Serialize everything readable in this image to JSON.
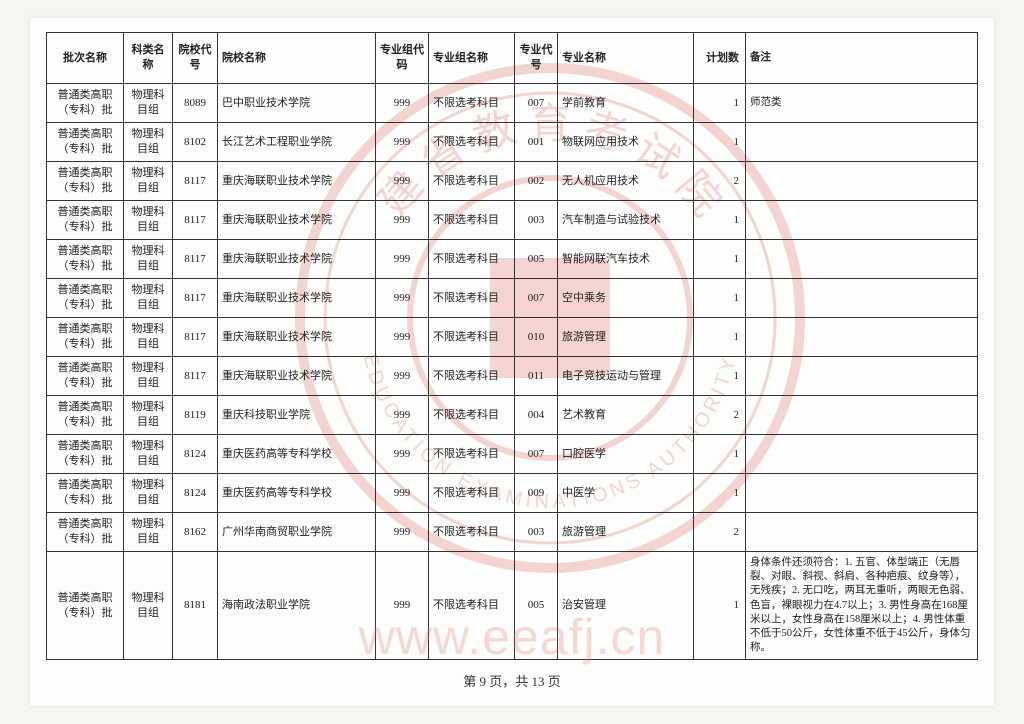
{
  "watermark_url": "www.eeafj.cn",
  "footer": "第 9 页，共 13 页",
  "seal": {
    "outer_color": "#d9483b",
    "text_top": "建 省 教 育 考 试 院",
    "text_bottom": "EDUCATION EXAMINATIONS AUTHORITY"
  },
  "columns": [
    "批次名称",
    "科类名称",
    "院校代号",
    "院校名称",
    "专业组代码",
    "专业组名称",
    "专业代号",
    "专业名称",
    "计划数",
    "备注"
  ],
  "rows": [
    {
      "batch": "普通类高职（专科）批",
      "cat": "物理科目组",
      "scode": "8089",
      "sname": "巴中职业技术学院",
      "gcode": "999",
      "gname": "不限选考科目",
      "mcode": "007",
      "mname": "学前教育",
      "plan": "1",
      "remark": "师范类"
    },
    {
      "batch": "普通类高职（专科）批",
      "cat": "物理科目组",
      "scode": "8102",
      "sname": "长江艺术工程职业学院",
      "gcode": "999",
      "gname": "不限选考科目",
      "mcode": "001",
      "mname": "物联网应用技术",
      "plan": "1",
      "remark": ""
    },
    {
      "batch": "普通类高职（专科）批",
      "cat": "物理科目组",
      "scode": "8117",
      "sname": "重庆海联职业技术学院",
      "gcode": "999",
      "gname": "不限选考科目",
      "mcode": "002",
      "mname": "无人机应用技术",
      "plan": "2",
      "remark": ""
    },
    {
      "batch": "普通类高职（专科）批",
      "cat": "物理科目组",
      "scode": "8117",
      "sname": "重庆海联职业技术学院",
      "gcode": "999",
      "gname": "不限选考科目",
      "mcode": "003",
      "mname": "汽车制造与试验技术",
      "plan": "1",
      "remark": ""
    },
    {
      "batch": "普通类高职（专科）批",
      "cat": "物理科目组",
      "scode": "8117",
      "sname": "重庆海联职业技术学院",
      "gcode": "999",
      "gname": "不限选考科目",
      "mcode": "005",
      "mname": "智能网联汽车技术",
      "plan": "1",
      "remark": ""
    },
    {
      "batch": "普通类高职（专科）批",
      "cat": "物理科目组",
      "scode": "8117",
      "sname": "重庆海联职业技术学院",
      "gcode": "999",
      "gname": "不限选考科目",
      "mcode": "007",
      "mname": "空中乘务",
      "plan": "1",
      "remark": ""
    },
    {
      "batch": "普通类高职（专科）批",
      "cat": "物理科目组",
      "scode": "8117",
      "sname": "重庆海联职业技术学院",
      "gcode": "999",
      "gname": "不限选考科目",
      "mcode": "010",
      "mname": "旅游管理",
      "plan": "1",
      "remark": ""
    },
    {
      "batch": "普通类高职（专科）批",
      "cat": "物理科目组",
      "scode": "8117",
      "sname": "重庆海联职业技术学院",
      "gcode": "999",
      "gname": "不限选考科目",
      "mcode": "011",
      "mname": "电子竞技运动与管理",
      "plan": "1",
      "remark": ""
    },
    {
      "batch": "普通类高职（专科）批",
      "cat": "物理科目组",
      "scode": "8119",
      "sname": "重庆科技职业学院",
      "gcode": "999",
      "gname": "不限选考科目",
      "mcode": "004",
      "mname": "艺术教育",
      "plan": "2",
      "remark": ""
    },
    {
      "batch": "普通类高职（专科）批",
      "cat": "物理科目组",
      "scode": "8124",
      "sname": "重庆医药高等专科学校",
      "gcode": "999",
      "gname": "不限选考科目",
      "mcode": "007",
      "mname": "口腔医学",
      "plan": "1",
      "remark": ""
    },
    {
      "batch": "普通类高职（专科）批",
      "cat": "物理科目组",
      "scode": "8124",
      "sname": "重庆医药高等专科学校",
      "gcode": "999",
      "gname": "不限选考科目",
      "mcode": "009",
      "mname": "中医学",
      "plan": "1",
      "remark": ""
    },
    {
      "batch": "普通类高职（专科）批",
      "cat": "物理科目组",
      "scode": "8162",
      "sname": "广州华南商贸职业学院",
      "gcode": "999",
      "gname": "不限选考科目",
      "mcode": "003",
      "mname": "旅游管理",
      "plan": "2",
      "remark": ""
    },
    {
      "batch": "普通类高职（专科）批",
      "cat": "物理科目组",
      "scode": "8181",
      "sname": "海南政法职业学院",
      "gcode": "999",
      "gname": "不限选考科目",
      "mcode": "005",
      "mname": "治安管理",
      "plan": "1",
      "remark": "身体条件还须符合：1. 五官、体型端正（无唇裂、对眼、斜视、斜肩、各种疤痕、纹身等），无残疾；2. 无口吃，两耳无重听，两眼无色弱、色盲，裸眼视力在4.7以上；3. 男性身高在168厘米以上，女性身高在158厘米以上；4. 男性体重不低于50公斤，女性体重不低于45公斤，身体匀称。",
      "tall": true
    }
  ]
}
